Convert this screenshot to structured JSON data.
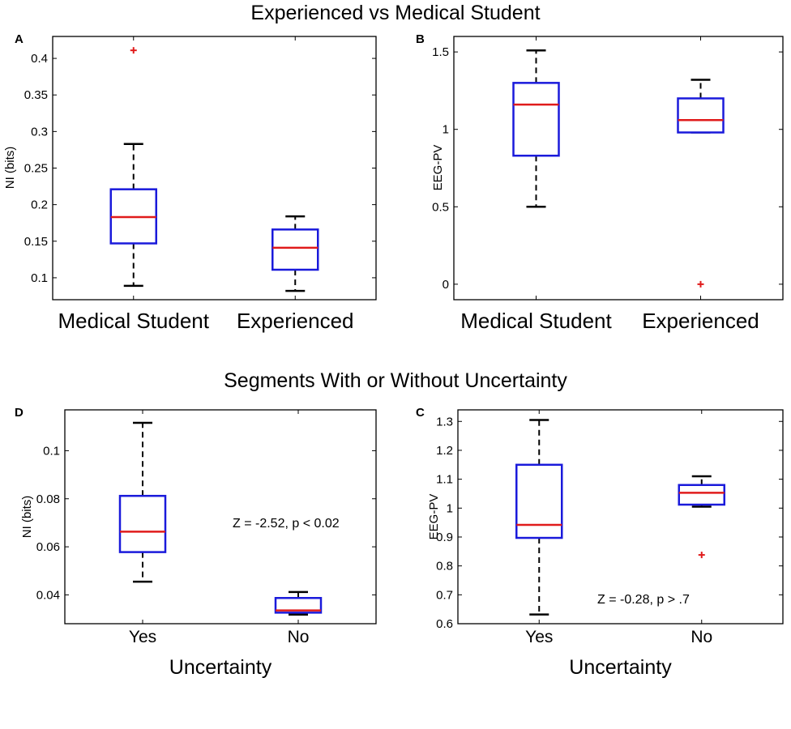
{
  "titles": {
    "top": "Experienced vs Medical Student",
    "bottom": "Segments With or Without Uncertainty"
  },
  "colors": {
    "box": "#1a1adb",
    "median": "#e01b1b",
    "whisker": "#000000",
    "outlier": "#e01b1b"
  },
  "chart_data": [
    {
      "id": "A",
      "type": "box",
      "panel_label": "A",
      "title": "",
      "ylabel": "NI (bits)",
      "xlabel": "",
      "ylim": [
        0.07,
        0.43
      ],
      "yticks": [
        0.1,
        0.15,
        0.2,
        0.25,
        0.3,
        0.35,
        0.4
      ],
      "ytick_labels": [
        "0.1",
        "0.15",
        "0.2",
        "0.25",
        "0.3",
        "0.35",
        "0.4"
      ],
      "categories": [
        "Medical Student",
        "Experienced"
      ],
      "boxes": [
        {
          "whisker_low": 0.089,
          "q1": 0.147,
          "median": 0.183,
          "q3": 0.221,
          "whisker_high": 0.283,
          "outliers": [
            0.411
          ]
        },
        {
          "whisker_low": 0.082,
          "q1": 0.111,
          "median": 0.141,
          "q3": 0.166,
          "whisker_high": 0.184,
          "outliers": []
        }
      ],
      "annotation": ""
    },
    {
      "id": "B",
      "type": "box",
      "panel_label": "B",
      "title": "",
      "ylabel": "EEG-PV",
      "xlabel": "",
      "ylim": [
        -0.1,
        1.6
      ],
      "yticks": [
        0,
        0.5,
        1,
        1.5
      ],
      "ytick_labels": [
        "0",
        "0.5",
        "1",
        "1.5"
      ],
      "categories": [
        "Medical Student",
        "Experienced"
      ],
      "boxes": [
        {
          "whisker_low": 0.5,
          "q1": 0.83,
          "median": 1.16,
          "q3": 1.3,
          "whisker_high": 1.51,
          "outliers": []
        },
        {
          "whisker_low": 0.98,
          "q1": 0.98,
          "median": 1.06,
          "q3": 1.2,
          "whisker_high": 1.32,
          "outliers": [
            0.0
          ]
        }
      ],
      "annotation": ""
    },
    {
      "id": "D",
      "type": "box",
      "panel_label": "D",
      "title": "",
      "ylabel": "NI (bits)",
      "xlabel": "Uncertainty",
      "ylim": [
        0.028,
        0.117
      ],
      "yticks": [
        0.04,
        0.06,
        0.08,
        0.1
      ],
      "ytick_labels": [
        "0.04",
        "0.06",
        "0.08",
        "0.1"
      ],
      "categories": [
        "Yes",
        "No"
      ],
      "boxes": [
        {
          "whisker_low": 0.0455,
          "q1": 0.0578,
          "median": 0.0663,
          "q3": 0.0812,
          "whisker_high": 0.1116,
          "outliers": []
        },
        {
          "whisker_low": 0.0318,
          "q1": 0.0326,
          "median": 0.0335,
          "q3": 0.0387,
          "whisker_high": 0.0412,
          "outliers": []
        }
      ],
      "annotation": "Z = -2.52, p < 0.02"
    },
    {
      "id": "C",
      "type": "box",
      "panel_label": "C",
      "title": "",
      "ylabel": "EEG-PV",
      "xlabel": "Uncertainty",
      "ylim": [
        0.6,
        1.34
      ],
      "yticks": [
        0.6,
        0.7,
        0.8,
        0.9,
        1,
        1.1,
        1.2,
        1.3
      ],
      "ytick_labels": [
        "0.6",
        "0.7",
        "0.8",
        "0.9",
        "1",
        "1.1",
        "1.2",
        "1.3"
      ],
      "categories": [
        "Yes",
        "No"
      ],
      "boxes": [
        {
          "whisker_low": 0.632,
          "q1": 0.897,
          "median": 0.942,
          "q3": 1.15,
          "whisker_high": 1.305,
          "outliers": []
        },
        {
          "whisker_low": 1.005,
          "q1": 1.012,
          "median": 1.053,
          "q3": 1.08,
          "whisker_high": 1.11,
          "outliers": [
            0.838
          ]
        }
      ],
      "annotation": "Z = -0.28, p > .7"
    }
  ]
}
